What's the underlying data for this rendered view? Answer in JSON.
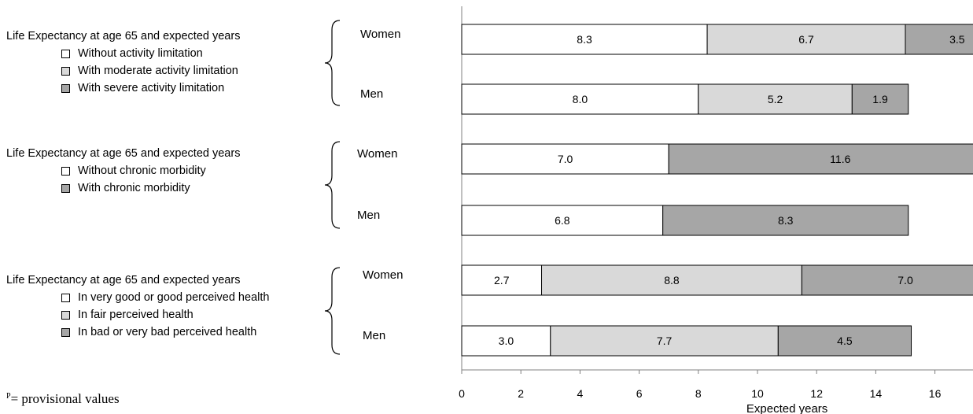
{
  "footnote": {
    "marker": "P",
    "text": "= provisional values"
  },
  "legends": [
    {
      "title": "Life Expectancy at age 65 and expected years",
      "items": [
        {
          "label": "Without activity limitation",
          "color": "#ffffff"
        },
        {
          "label": "With moderate activity limitation",
          "color": "#d9d9d9"
        },
        {
          "label": "With severe activity limitation",
          "color": "#a6a6a6"
        }
      ]
    },
    {
      "title": "Life Expectancy at age 65 and expected years",
      "items": [
        {
          "label": "Without chronic morbidity",
          "color": "#ffffff"
        },
        {
          "label": "With chronic morbidity",
          "color": "#a6a6a6"
        }
      ]
    },
    {
      "title": "Life Expectancy at age 65 and expected years",
      "items": [
        {
          "label": "In very good or good perceived health",
          "color": "#ffffff"
        },
        {
          "label": "In fair perceived health",
          "color": "#d9d9d9"
        },
        {
          "label": "In bad or very bad perceived health",
          "color": "#a6a6a6"
        }
      ]
    }
  ],
  "chart_data": {
    "type": "bar",
    "orientation": "horizontal",
    "stacked": true,
    "xlabel": "Expected years",
    "xlim": [
      0,
      22
    ],
    "xticks": [
      "0",
      "2",
      "4",
      "6",
      "8",
      "10",
      "12",
      "14",
      "16",
      "18",
      "20",
      "22"
    ],
    "grid": false,
    "groups": [
      {
        "bars": [
          {
            "category": "Women",
            "values": [
              8.3,
              6.7,
              3.5
            ],
            "labels": [
              "8.3",
              "6.7",
              "3.5"
            ],
            "colors": [
              "#ffffff",
              "#d9d9d9",
              "#a6a6a6"
            ]
          },
          {
            "category": "Men",
            "values": [
              8.0,
              5.2,
              1.9
            ],
            "labels": [
              "8.0",
              "5.2",
              "1.9"
            ],
            "colors": [
              "#ffffff",
              "#d9d9d9",
              "#a6a6a6"
            ]
          }
        ]
      },
      {
        "bars": [
          {
            "category": "Women",
            "values": [
              7.0,
              11.6
            ],
            "labels": [
              "7.0",
              "11.6"
            ],
            "colors": [
              "#ffffff",
              "#a6a6a6"
            ]
          },
          {
            "category": "Men",
            "values": [
              6.8,
              8.3
            ],
            "labels": [
              "6.8",
              "8.3"
            ],
            "colors": [
              "#ffffff",
              "#a6a6a6"
            ]
          }
        ]
      },
      {
        "bars": [
          {
            "category": "Women",
            "values": [
              2.7,
              8.8,
              7.0
            ],
            "labels": [
              "2.7",
              "8.8",
              "7.0"
            ],
            "colors": [
              "#ffffff",
              "#d9d9d9",
              "#a6a6a6"
            ]
          },
          {
            "category": "Men",
            "values": [
              3.0,
              7.7,
              4.5
            ],
            "labels": [
              "3.0",
              "7.7",
              "4.5"
            ],
            "colors": [
              "#ffffff",
              "#d9d9d9",
              "#a6a6a6"
            ]
          }
        ]
      }
    ]
  }
}
